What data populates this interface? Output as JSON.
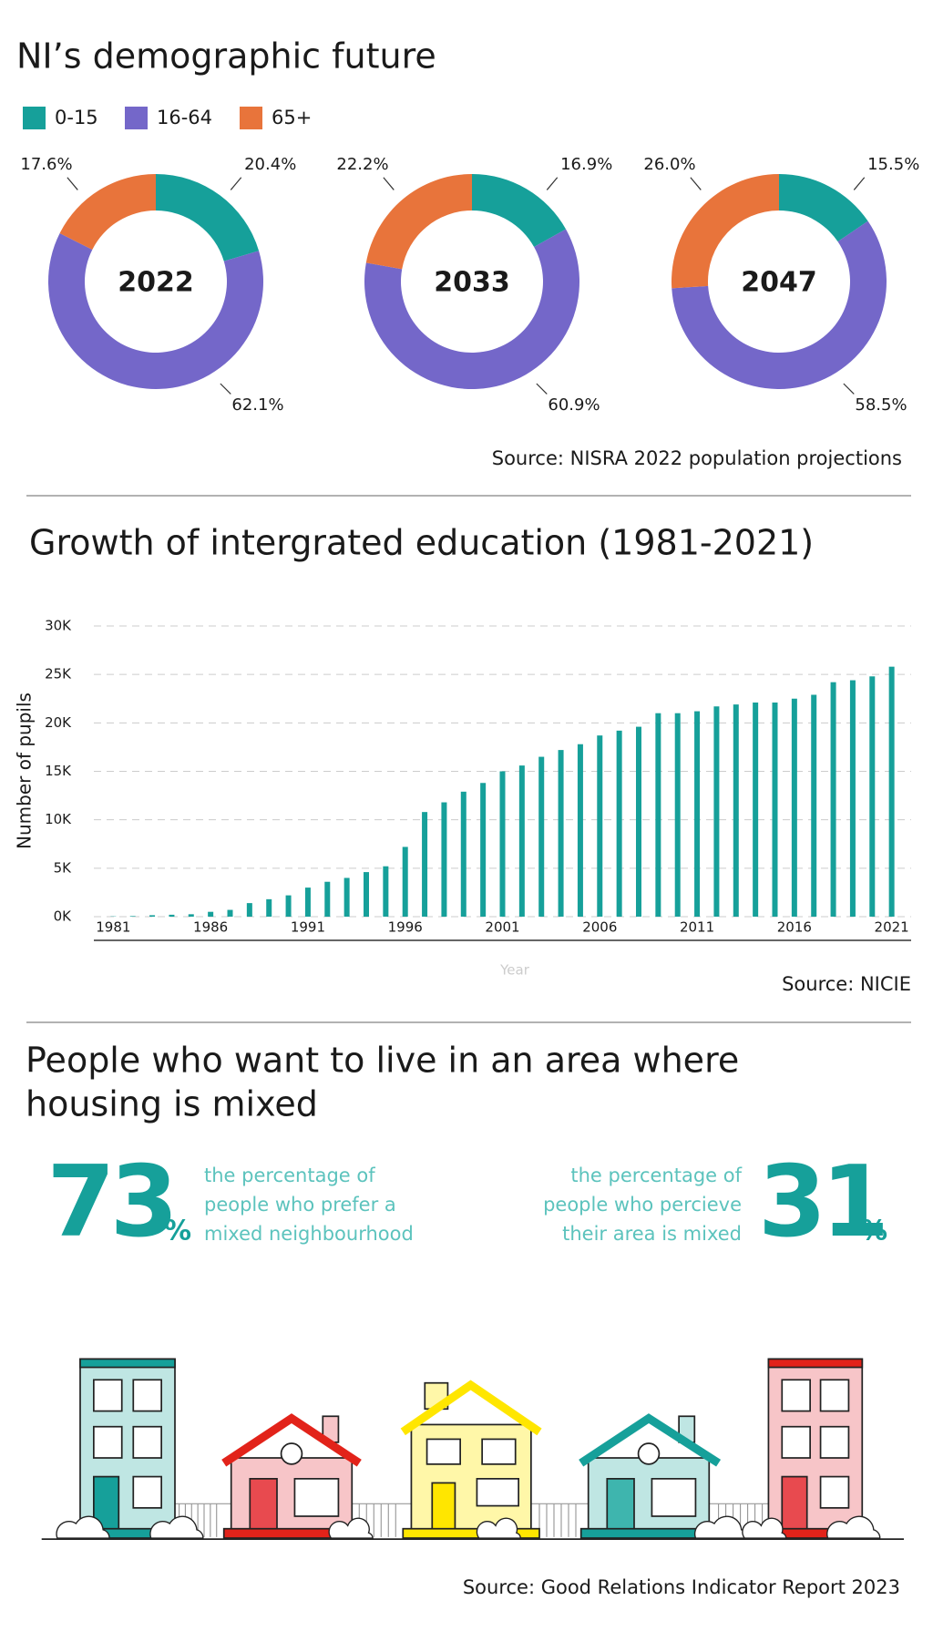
{
  "demographics": {
    "title": "NI’s demographic future",
    "source": "Source: NISRA 2022 population projections"
  },
  "chart_data": [
    {
      "type": "donut",
      "title": "2022",
      "categories": [
        "0-15",
        "16-64",
        "65+"
      ],
      "colors": [
        "#16a09a",
        "#7467c9",
        "#e8743b"
      ],
      "values": [
        20.4,
        62.1,
        17.6
      ],
      "value_labels": [
        "20.4%",
        "62.1%",
        "17.6%"
      ]
    },
    {
      "type": "donut",
      "title": "2033",
      "categories": [
        "0-15",
        "16-64",
        "65+"
      ],
      "colors": [
        "#16a09a",
        "#7467c9",
        "#e8743b"
      ],
      "values": [
        16.9,
        60.9,
        22.2
      ],
      "value_labels": [
        "16.9%",
        "60.9%",
        "22.2%"
      ]
    },
    {
      "type": "donut",
      "title": "2047",
      "categories": [
        "0-15",
        "16-64",
        "65+"
      ],
      "colors": [
        "#16a09a",
        "#7467c9",
        "#e8743b"
      ],
      "values": [
        15.5,
        58.5,
        26.0
      ],
      "value_labels": [
        "15.5%",
        "58.5%",
        "26.0%"
      ]
    },
    {
      "type": "bar",
      "title": "Growth of intergrated education (1981-2021)",
      "y_label": "Number of pupils",
      "x_label": "Year",
      "source": "Source: NICIE",
      "color": "#16a09a",
      "grid": true,
      "x": [
        1981,
        1982,
        1983,
        1984,
        1985,
        1986,
        1987,
        1988,
        1989,
        1990,
        1991,
        1992,
        1993,
        1994,
        1995,
        1996,
        1997,
        1998,
        1999,
        2000,
        2001,
        2002,
        2003,
        2004,
        2005,
        2006,
        2007,
        2008,
        2009,
        2010,
        2011,
        2012,
        2013,
        2014,
        2015,
        2016,
        2017,
        2018,
        2019,
        2020,
        2021
      ],
      "values": [
        30,
        60,
        150,
        200,
        250,
        500,
        700,
        1400,
        1800,
        2200,
        3000,
        3600,
        4000,
        4600,
        5200,
        7200,
        10800,
        11800,
        12900,
        13800,
        15000,
        15600,
        16500,
        17200,
        17800,
        18700,
        19200,
        19600,
        21000,
        21000,
        21200,
        21700,
        21900,
        22100,
        22100,
        22500,
        22900,
        24200,
        24400,
        24800,
        25800
      ],
      "xlim": [
        1980,
        2022
      ],
      "xticks": [
        1981,
        1986,
        1991,
        1996,
        2001,
        2006,
        2011,
        2016,
        2021
      ],
      "ylim": [
        0,
        30000
      ],
      "yticks": [
        {
          "value": 0,
          "label": "0K"
        },
        {
          "value": 5000,
          "label": "5K"
        },
        {
          "value": 10000,
          "label": "10K"
        },
        {
          "value": 15000,
          "label": "15K"
        },
        {
          "value": 20000,
          "label": "20K"
        },
        {
          "value": 25000,
          "label": "25K"
        },
        {
          "value": 30000,
          "label": "30K"
        }
      ]
    }
  ],
  "housing": {
    "title": [
      "People who want to live in an area where",
      "housing is mixed"
    ],
    "stats": [
      {
        "value": 73,
        "unit": "%",
        "text": [
          "the percentage of",
          "people who prefer a",
          "mixed neighbourhood"
        ]
      },
      {
        "value": 31,
        "unit": "%",
        "text": [
          "the percentage of",
          "people who percieve",
          "their area is mixed"
        ]
      }
    ],
    "source": "Source: Good Relations Indicator Report 2023"
  }
}
